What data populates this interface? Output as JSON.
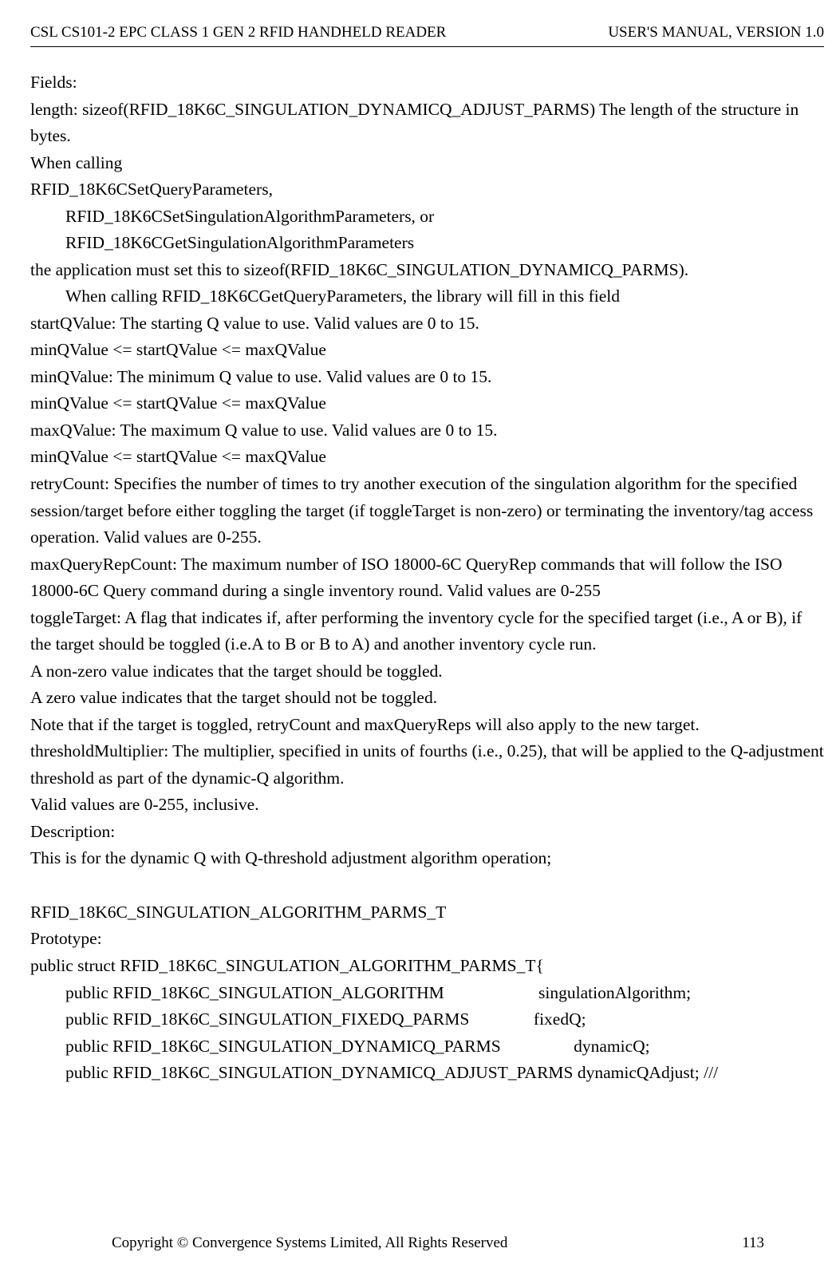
{
  "header": {
    "left": "CSL CS101-2 EPC CLASS 1 GEN 2 RFID HANDHELD READER",
    "right": "USER'S  MANUAL,  VERSION  1.0"
  },
  "body": {
    "fields_label": "Fields:",
    "length_text": "length: sizeof(RFID_18K6C_SINGULATION_DYNAMICQ_ADJUST_PARMS) The length of the structure in bytes.",
    "when_calling": "When calling",
    "rfid_set_query": "RFID_18K6CSetQueryParameters,",
    "rfid_set_sing": "RFID_18K6CSetSingulationAlgorithmParameters, or",
    "rfid_get_sing": "RFID_18K6CGetSingulationAlgorithmParameters",
    "app_must_set": "the application must set this to sizeof(RFID_18K6C_SINGULATION_DYNAMICQ_PARMS).",
    "when_calling_get": "When calling RFID_18K6CGetQueryParameters, the library will fill in this field",
    "startq": "startQValue:    The starting Q value to use.    Valid values are 0 to 15.",
    "startq_range": "minQValue <= startQValue <= maxQValue",
    "minq": "minQValue:    The minimum Q value to use.    Valid values are 0 to 15.",
    "minq_range": "minQValue <= startQValue <= maxQValue",
    "maxq": "maxQValue:    The maximum Q value to use.    Valid values are 0 to 15.",
    "maxq_range": "minQValue <= startQValue <= maxQValue",
    "retry": "retryCount:      Specifies the number of times to try another execution of the singulation algorithm for the specified session/target before either toggling the target (if toggleTarget is non-zero) or terminating the inventory/tag access operation. Valid values are 0-255.",
    "maxqrep": "maxQueryRepCount:    The maximum number of ISO 18000-6C QueryRep commands that will follow the ISO 18000-6C Query command during a single inventory round. Valid values are 0-255",
    "toggle": "toggleTarget: A flag that indicates if, after performing the inventory cycle for the specified target (i.e., A or B), if the target should be toggled (i.e.A to B or B to A) and another inventory cycle run.",
    "toggle_nonzero": "A non-zero value indicates that the target should be toggled.",
    "toggle_zero": "A zero value indicates that the target should not be toggled.",
    "toggle_note": "Note that if the target is toggled, retryCount and maxQueryReps will also apply to the new target.",
    "threshold": "thresholdMultiplier:        The multiplier, specified in units of fourths (i.e., 0.25), that will be applied to the Q-adjustment threshold as part of the dynamic-Q algorithm.",
    "threshold_valid": "Valid values are 0-255, inclusive.",
    "description_label": "Description:",
    "description_text": "This is for the dynamic Q with Q-threshold adjustment algorithm operation;",
    "struct_name": "RFID_18K6C_SINGULATION_ALGORITHM_PARMS_T",
    "prototype_label": "Prototype:",
    "struct_decl": "public struct RFID_18K6C_SINGULATION_ALGORITHM_PARMS_T{",
    "struct_line1": "public RFID_18K6C_SINGULATION_ALGORITHM                      singulationAlgorithm;",
    "struct_line2": "public RFID_18K6C_SINGULATION_FIXEDQ_PARMS               fixedQ;",
    "struct_line3": "public RFID_18K6C_SINGULATION_DYNAMICQ_PARMS                 dynamicQ;",
    "struct_line4": "public RFID_18K6C_SINGULATION_DYNAMICQ_ADJUST_PARMS dynamicQAdjust; ///"
  },
  "footer": {
    "copyright": "Copyright © Convergence Systems Limited, All Rights Reserved",
    "page_number": "113"
  }
}
